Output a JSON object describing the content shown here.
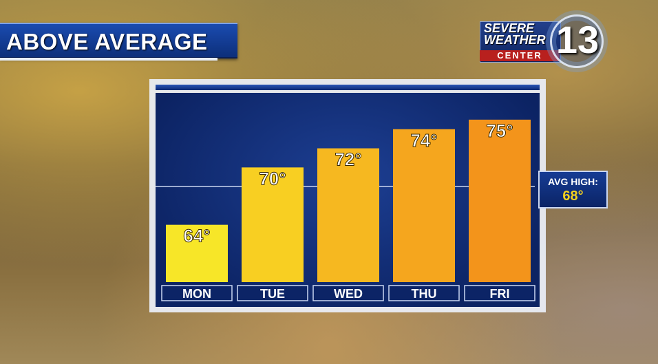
{
  "banner": {
    "title": "ABOVE AVERAGE"
  },
  "logo": {
    "line1": "SEVERE",
    "line2": "WEATHER",
    "line3": "CENTER",
    "number": "13"
  },
  "avg_box": {
    "label": "AVG HIGH:",
    "value": "68°"
  },
  "chart_data": {
    "type": "bar",
    "categories": [
      "MON",
      "TUE",
      "WED",
      "THU",
      "FRI"
    ],
    "values": [
      64,
      70,
      72,
      74,
      75
    ],
    "value_labels": [
      "64°",
      "70°",
      "72°",
      "74°",
      "75°"
    ],
    "reference_line": {
      "value": 68,
      "label": "AVG HIGH: 68°"
    },
    "ylim": [
      58,
      76
    ],
    "bar_colors": [
      "#f7e628",
      "#f8cf22",
      "#f6b820",
      "#f5a61e",
      "#f3941b"
    ],
    "grid": false
  }
}
